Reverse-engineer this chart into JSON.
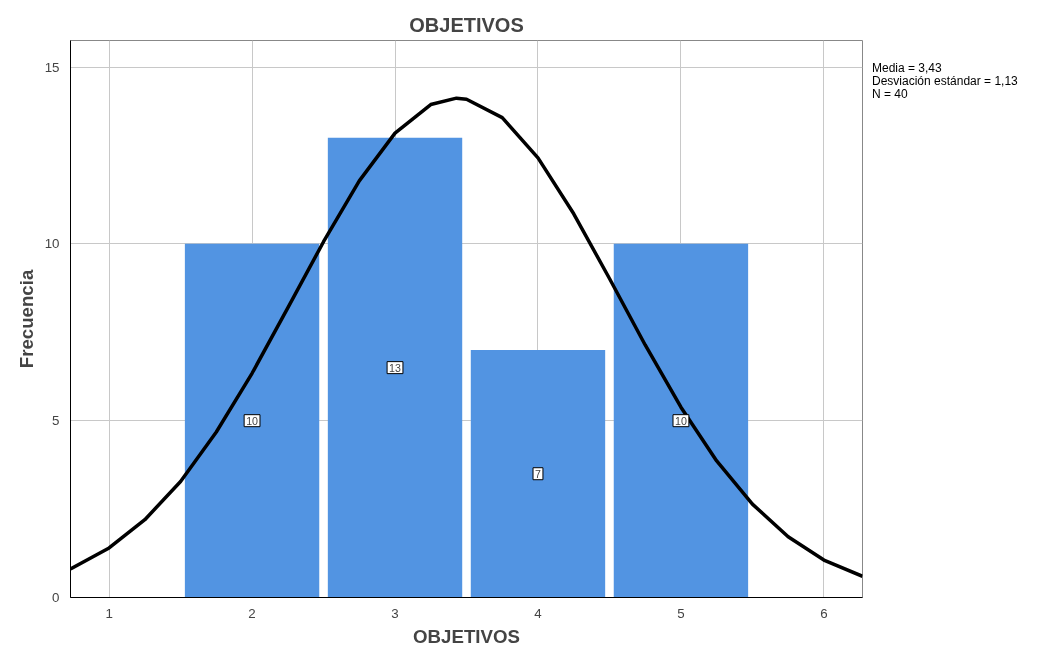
{
  "chart_data": {
    "type": "histogram",
    "title": "OBJETIVOS",
    "xlabel": "OBJETIVOS",
    "ylabel": "Frecuencia",
    "bins": [
      1.5,
      2.5,
      3.5,
      4.5,
      5.5
    ],
    "values": [
      10,
      13,
      7,
      10
    ],
    "color": "#5294e2",
    "value_labels": [
      "10",
      "13",
      "7",
      "10"
    ],
    "series": [
      {
        "type": "line",
        "color": "#000000",
        "x": [
          0.73,
          1.0,
          1.25,
          1.5,
          1.75,
          2.0,
          2.25,
          2.5,
          2.75,
          3.0,
          3.25,
          3.43,
          3.5,
          3.75,
          4.0,
          4.25,
          4.5,
          4.75,
          5.0,
          5.25,
          5.5,
          5.75,
          6.0,
          6.27
        ],
        "values": [
          0.81,
          1.4,
          2.2,
          3.28,
          4.68,
          6.34,
          8.19,
          10.06,
          11.78,
          13.13,
          13.94,
          14.12,
          14.09,
          13.57,
          12.43,
          10.85,
          9.02,
          7.14,
          5.38,
          3.86,
          2.64,
          1.72,
          1.06,
          0.6
        ]
      }
    ],
    "xlim": [
      0.73,
      6.27
    ],
    "xticks": [
      1,
      2,
      3,
      4,
      5,
      6
    ],
    "ylim": [
      0,
      15.75
    ],
    "yticks": [
      0,
      5,
      10,
      15
    ],
    "grid": true,
    "annotations": [
      "Media = 3,43",
      "Desviación estándar = 1,13",
      "N = 40"
    ]
  }
}
